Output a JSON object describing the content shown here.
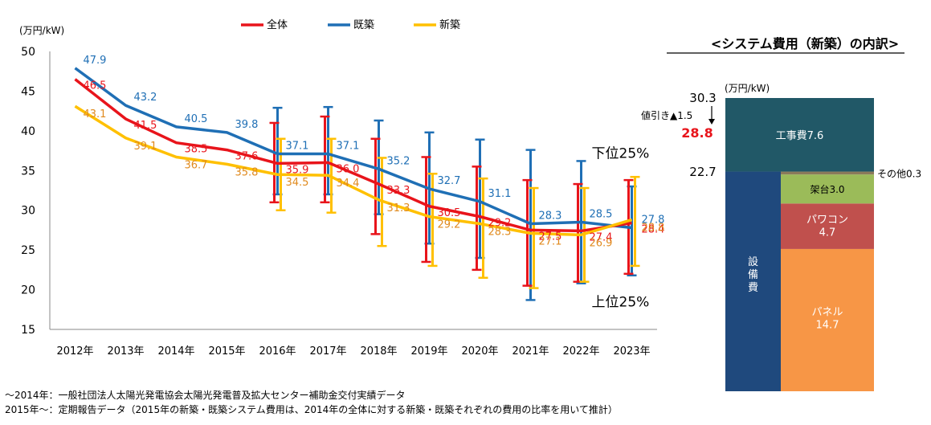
{
  "chart_data": [
    {
      "type": "line",
      "ylabel": "(万円/kW)",
      "ylim": [
        15,
        50
      ],
      "yticks": [
        15,
        20,
        25,
        30,
        35,
        40,
        45,
        50
      ],
      "categories": [
        "2012年",
        "2013年",
        "2014年",
        "2015年",
        "2016年",
        "2017年",
        "2018年",
        "2019年",
        "2020年",
        "2021年",
        "2022年",
        "2023年"
      ],
      "legend_position": "top",
      "grid": false,
      "series": [
        {
          "name": "全体",
          "color": "#e8141b",
          "values": [
            46.5,
            41.5,
            38.5,
            37.6,
            35.9,
            36.0,
            33.3,
            30.5,
            29.2,
            27.5,
            27.4,
            28.4
          ],
          "error_low": [
            null,
            null,
            null,
            null,
            31.0,
            31.0,
            27.0,
            23.5,
            22.5,
            20.5,
            21.0,
            22.0
          ],
          "error_high": [
            null,
            null,
            null,
            null,
            41.0,
            41.8,
            39.0,
            36.7,
            35.5,
            33.8,
            33.3,
            33.8
          ]
        },
        {
          "name": "既築",
          "color": "#1f6fb5",
          "values": [
            47.9,
            43.2,
            40.5,
            39.8,
            37.1,
            37.1,
            35.2,
            32.7,
            31.1,
            28.3,
            28.5,
            27.8
          ],
          "error_low": [
            null,
            null,
            null,
            null,
            32.0,
            32.0,
            29.5,
            25.8,
            24.0,
            18.7,
            20.8,
            21.8
          ],
          "error_high": [
            null,
            null,
            null,
            null,
            42.9,
            43.0,
            41.3,
            39.8,
            38.9,
            37.6,
            36.2,
            33.0
          ]
        },
        {
          "name": "新築",
          "color": "#ffc000",
          "values": [
            43.1,
            39.1,
            36.7,
            35.8,
            34.5,
            34.4,
            31.3,
            29.2,
            28.3,
            27.1,
            26.9,
            28.8
          ],
          "error_low": [
            null,
            null,
            null,
            null,
            30.0,
            29.7,
            25.5,
            23.0,
            21.5,
            20.2,
            21.0,
            23.0
          ],
          "error_high": [
            null,
            null,
            null,
            null,
            39.0,
            39.0,
            36.6,
            34.6,
            34.0,
            32.8,
            32.8,
            34.2
          ]
        }
      ],
      "label_colors": {
        "全体": "#e8141b",
        "既築": "#1f6fb5",
        "新築": "#e08a1e"
      },
      "annotations": [
        {
          "text": "下位25%",
          "x": "2023年",
          "y": 37.2
        },
        {
          "text": "上位25%",
          "x": "2023年",
          "y": 18.5
        }
      ]
    },
    {
      "type": "bar",
      "title": "<システム費用（新築）の内訳>",
      "unit_label": "(万円/kW)",
      "total": 30.3,
      "discount_label": "値引き▲1.5",
      "net_total": 28.8,
      "equipment_total": 22.7,
      "equipment_label": "設備費",
      "stack": [
        {
          "name": "パネル",
          "value": 14.7,
          "color": "#f79646"
        },
        {
          "name": "パワコン",
          "value": 4.7,
          "color": "#c0504d"
        },
        {
          "name": "架台",
          "value": 3.0,
          "color": "#9bbb59"
        },
        {
          "name": "その他",
          "value": 0.3,
          "color": "#8b7a5a"
        },
        {
          "name": "工事費",
          "value": 7.6,
          "color": "#215867"
        }
      ],
      "equipment_color": "#1f497d",
      "labels": {
        "panel": "パネル\n14.7",
        "pcs": "パワコン\n4.7",
        "mount": "架台3.0",
        "other": "その他0.3",
        "construction": "工事費7.6",
        "total_text": "30.3",
        "net_text": "28.8",
        "equip_text": "22.7"
      }
    }
  ],
  "notes": {
    "line1": "～2014年：一般社団法人太陽光発電協会太陽光発電普及拡大センター補助金交付実績データ",
    "line2": "2015年～：定期報告データ（2015年の新築・既築システム費用は、2014年の全体に対する新築・既築それぞれの費用の比率を用いて推計）"
  }
}
